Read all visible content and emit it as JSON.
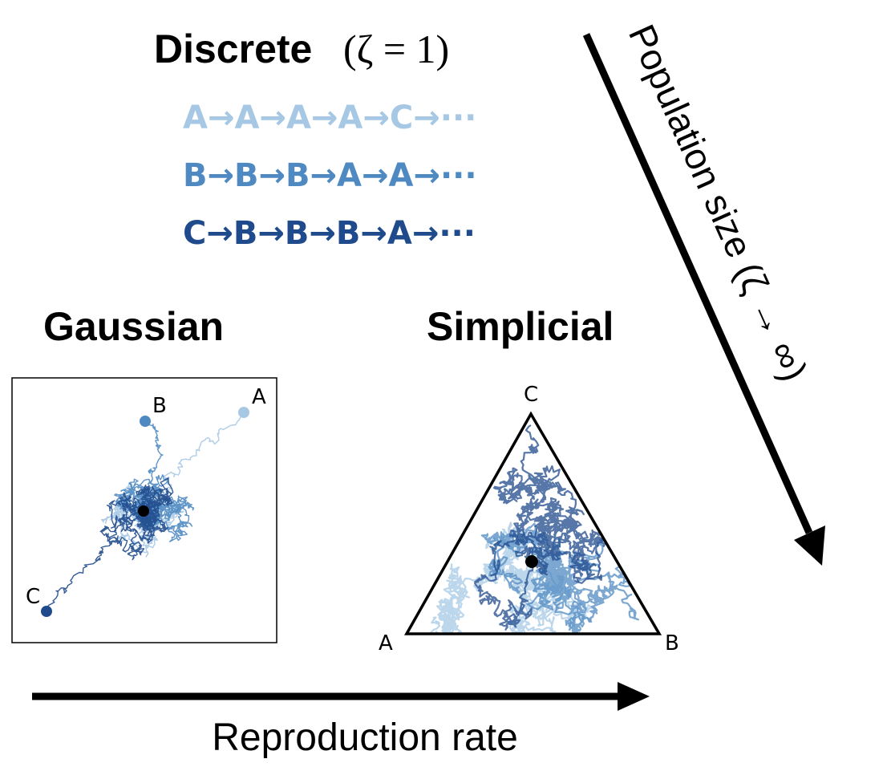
{
  "discrete": {
    "title": "Discrete",
    "param": "(ζ = 1)",
    "sequences": [
      {
        "text": "A→A→A→A→C→···",
        "color": "#a6c8e4"
      },
      {
        "text": "B→B→B→A→A→···",
        "color": "#4f89c2"
      },
      {
        "text": "C→B→B→B→A→···",
        "color": "#1f4a8c"
      }
    ]
  },
  "gaussian": {
    "title": "Gaussian",
    "vertices": [
      {
        "label": "A",
        "color": "#a6c8e4"
      },
      {
        "label": "B",
        "color": "#4f89c2"
      },
      {
        "label": "C",
        "color": "#1f4a8c"
      }
    ]
  },
  "simplicial": {
    "title": "Simplicial",
    "vertices": [
      {
        "label": "A"
      },
      {
        "label": "B"
      },
      {
        "label": "C"
      }
    ]
  },
  "axes": {
    "horizontal": "Reproduction rate",
    "vertical": "Population size (ζ → ∞)"
  },
  "colors": {
    "light": "#a6c8e4",
    "mid": "#4f89c2",
    "dark": "#1f4a8c",
    "center": "#000000"
  }
}
